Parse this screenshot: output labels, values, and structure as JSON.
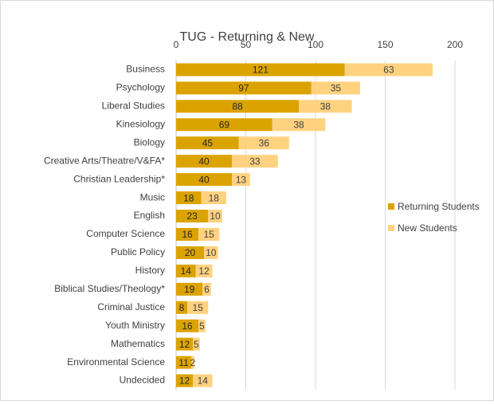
{
  "chart_data": {
    "type": "stacked-bar-horizontal",
    "title": "TUG - Returning & New",
    "categories": [
      "Business",
      "Psychology",
      "Liberal Studies",
      "Kinesiology",
      "Biology",
      "Creative Arts/Theatre/V&FA*",
      "Christian Leadership*",
      "Music",
      "English",
      "Computer Science",
      "Public Policy",
      "History",
      "Biblical Studies/Theology*",
      "Criminal Justice",
      "Youth Ministry",
      "Mathematics",
      "Environmental Science",
      "Undecided"
    ],
    "series": [
      {
        "name": "Returning Students",
        "color": "#dba300",
        "values": [
          121,
          97,
          88,
          69,
          45,
          40,
          40,
          18,
          23,
          16,
          20,
          14,
          19,
          8,
          16,
          12,
          11,
          12
        ]
      },
      {
        "name": "New Students",
        "color": "#ffd27f",
        "values": [
          63,
          35,
          38,
          38,
          36,
          33,
          13,
          18,
          10,
          15,
          10,
          12,
          6,
          15,
          5,
          5,
          2,
          14
        ]
      }
    ],
    "xlim": [
      0,
      200
    ],
    "xticks": [
      0,
      50,
      100,
      150,
      200
    ],
    "grid": true,
    "legend": "right"
  }
}
